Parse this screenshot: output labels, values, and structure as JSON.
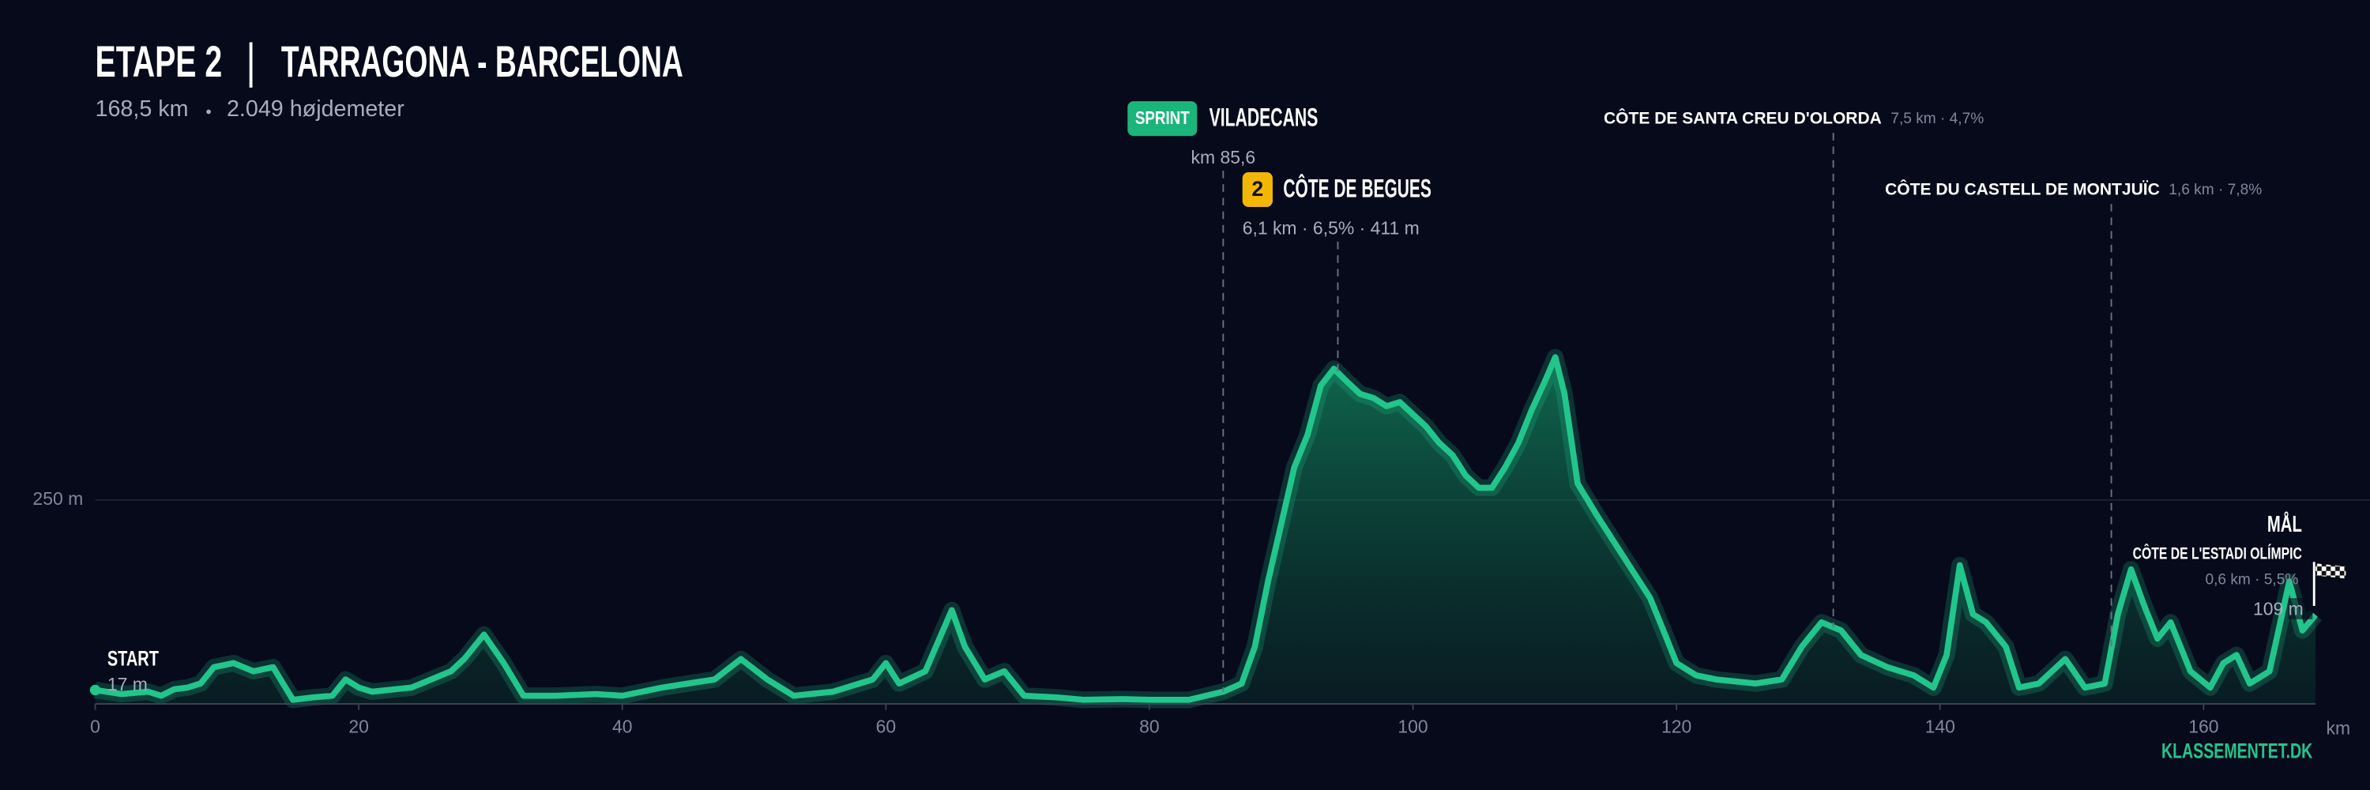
{
  "chart_data": {
    "type": "elevation-profile",
    "title": "ETAPE 2",
    "route": "TARRAGONA - BARCELONA",
    "distance": "168,5 km",
    "climbing": "2.049 højdemeter",
    "color": "#22c58b",
    "xlim": [
      0,
      168.5
    ],
    "xticks": [
      0,
      20,
      40,
      60,
      80,
      100,
      120,
      140,
      160
    ],
    "x_unit": "km",
    "ylim": [
      0,
      500
    ],
    "yticks": [
      {
        "value": 250,
        "label": "250 m"
      }
    ],
    "grid": true,
    "series": [
      {
        "name": "Højdeprofil",
        "x": [
          0,
          2,
          4,
          5,
          6,
          7,
          8,
          9,
          10.5,
          12,
          13.5,
          15,
          16.5,
          18,
          19,
          20,
          21,
          24,
          27,
          28,
          29.5,
          31,
          32.5,
          35,
          38,
          40,
          43,
          45,
          47,
          49,
          51,
          53,
          56,
          59,
          60,
          61,
          63,
          65,
          66,
          67.5,
          69,
          70.5,
          73,
          75,
          78,
          80,
          83,
          85.6,
          87,
          88,
          89,
          90,
          91,
          92,
          93,
          94,
          95,
          96,
          97,
          98,
          99,
          100,
          101,
          102,
          103,
          104,
          105,
          106,
          107,
          108,
          109,
          110,
          110.8,
          111.5,
          112.5,
          114,
          116,
          118,
          119,
          120,
          121.5,
          123,
          126,
          128,
          129.5,
          131,
          132.5,
          134,
          136,
          138,
          139.5,
          140.5,
          141.5,
          142.5,
          143.5,
          145,
          146,
          147.5,
          149.5,
          151,
          152.5,
          153.5,
          154.5,
          155.5,
          156.5,
          157.5,
          159,
          160.5,
          161.5,
          162.5,
          163.5,
          165,
          166.5,
          167.5,
          168.5
        ],
        "values": [
          17,
          12,
          15,
          10,
          18,
          20,
          25,
          45,
          50,
          40,
          45,
          5,
          8,
          10,
          30,
          20,
          15,
          20,
          40,
          55,
          85,
          50,
          10,
          10,
          12,
          10,
          20,
          25,
          30,
          55,
          30,
          10,
          15,
          30,
          50,
          25,
          40,
          115,
          70,
          30,
          40,
          10,
          8,
          5,
          6,
          5,
          5,
          15,
          25,
          70,
          150,
          220,
          290,
          330,
          390,
          411,
          395,
          380,
          375,
          365,
          370,
          355,
          340,
          320,
          305,
          280,
          265,
          265,
          290,
          320,
          360,
          395,
          425,
          380,
          270,
          230,
          180,
          130,
          90,
          50,
          35,
          30,
          25,
          30,
          70,
          100,
          90,
          60,
          45,
          35,
          20,
          60,
          170,
          110,
          100,
          70,
          20,
          25,
          55,
          20,
          25,
          110,
          165,
          120,
          80,
          100,
          40,
          20,
          50,
          60,
          25,
          40,
          150,
          90,
          109
        ]
      }
    ],
    "start": {
      "label": "START",
      "elevation": 17,
      "elevation_label": "17 m"
    },
    "finish": {
      "label": "MÅL",
      "elevation": 109,
      "elevation_label": "109 m"
    },
    "annotations": [
      {
        "kind": "sprint",
        "badge": "SPRINT",
        "name": "VILADECANS",
        "km": 85.6,
        "detail": "km 85,6"
      },
      {
        "kind": "climb",
        "badge": "2",
        "name": "CÔTE DE BEGUES",
        "km": 94.3,
        "detail": "6,1 km · 6,5% · 411 m"
      },
      {
        "kind": "climb-small",
        "name": "CÔTE DE SANTA CREU D'OLORDA",
        "km": 131.9,
        "detail": "7,5 km · 4,7%"
      },
      {
        "kind": "climb-small",
        "name": "CÔTE DU CASTELL DE MONTJUÏC",
        "km": 153,
        "detail": "1,6 km · 7,8%"
      },
      {
        "kind": "climb-final",
        "name": "CÔTE DE L'ESTADI OLÍMPIC",
        "detail": "0,6 km · 5,5%"
      }
    ],
    "brand": "KLASSEMENTET.DK"
  }
}
